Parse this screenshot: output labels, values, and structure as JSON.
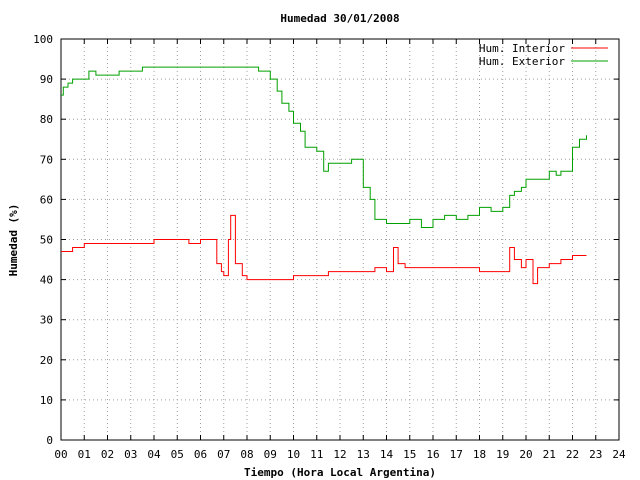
{
  "chart_data": {
    "type": "line",
    "title": "Humedad 30/01/2008",
    "xlabel": "Tiempo (Hora Local Argentina)",
    "ylabel": "Humedad (%)",
    "xlim": [
      0,
      24
    ],
    "ylim": [
      0,
      100
    ],
    "x_ticks": [
      "00",
      "01",
      "02",
      "03",
      "04",
      "05",
      "06",
      "07",
      "08",
      "09",
      "10",
      "11",
      "12",
      "13",
      "14",
      "15",
      "16",
      "17",
      "18",
      "19",
      "20",
      "21",
      "22",
      "23",
      "24"
    ],
    "y_ticks": [
      "0",
      "10",
      "20",
      "30",
      "40",
      "50",
      "60",
      "70",
      "80",
      "90",
      "100"
    ],
    "grid": true,
    "legend_position": "top-right",
    "colors": {
      "interior": "#ff0000",
      "exterior": "#00a000"
    },
    "series": [
      {
        "name": "Hum. Interior",
        "x": [
          0.0,
          0.5,
          1.0,
          1.5,
          2.0,
          2.5,
          3.0,
          3.5,
          4.0,
          4.5,
          5.0,
          5.5,
          6.0,
          6.5,
          6.7,
          6.9,
          7.0,
          7.2,
          7.3,
          7.5,
          7.8,
          8.0,
          8.5,
          9.0,
          9.5,
          10.0,
          10.5,
          11.0,
          11.5,
          12.0,
          12.5,
          13.0,
          13.5,
          14.0,
          14.3,
          14.5,
          14.8,
          15.0,
          15.5,
          16.0,
          16.5,
          17.0,
          17.5,
          18.0,
          18.5,
          19.0,
          19.3,
          19.5,
          19.8,
          20.0,
          20.3,
          20.5,
          21.0,
          21.5,
          22.0,
          22.6
        ],
        "values": [
          47,
          48,
          49,
          49,
          49,
          49,
          49,
          49,
          50,
          50,
          50,
          49,
          50,
          50,
          44,
          42,
          41,
          50,
          56,
          44,
          41,
          40,
          40,
          40,
          40,
          41,
          41,
          41,
          42,
          42,
          42,
          42,
          43,
          42,
          48,
          44,
          43,
          43,
          43,
          43,
          43,
          43,
          43,
          42,
          42,
          42,
          48,
          45,
          43,
          45,
          39,
          43,
          44,
          45,
          46,
          46
        ]
      },
      {
        "name": "Hum. Exterior",
        "x": [
          0.0,
          0.1,
          0.3,
          0.5,
          1.0,
          1.2,
          1.5,
          2.0,
          2.5,
          3.0,
          3.5,
          4.0,
          4.5,
          5.0,
          5.5,
          6.0,
          6.5,
          7.0,
          7.5,
          8.0,
          8.5,
          9.0,
          9.3,
          9.5,
          9.8,
          10.0,
          10.3,
          10.5,
          11.0,
          11.3,
          11.5,
          12.0,
          12.5,
          13.0,
          13.3,
          13.5,
          14.0,
          14.5,
          15.0,
          15.5,
          16.0,
          16.5,
          17.0,
          17.5,
          18.0,
          18.5,
          19.0,
          19.3,
          19.5,
          19.8,
          20.0,
          20.5,
          21.0,
          21.3,
          21.5,
          22.0,
          22.3,
          22.6
        ],
        "values": [
          86,
          88,
          89,
          90,
          90,
          92,
          91,
          91,
          92,
          92,
          93,
          93,
          93,
          93,
          93,
          93,
          93,
          93,
          93,
          93,
          92,
          90,
          87,
          84,
          82,
          79,
          77,
          73,
          72,
          67,
          69,
          69,
          70,
          63,
          60,
          55,
          54,
          54,
          55,
          53,
          55,
          56,
          55,
          56,
          58,
          57,
          58,
          61,
          62,
          63,
          65,
          65,
          67,
          66,
          67,
          73,
          75,
          76
        ]
      }
    ]
  }
}
